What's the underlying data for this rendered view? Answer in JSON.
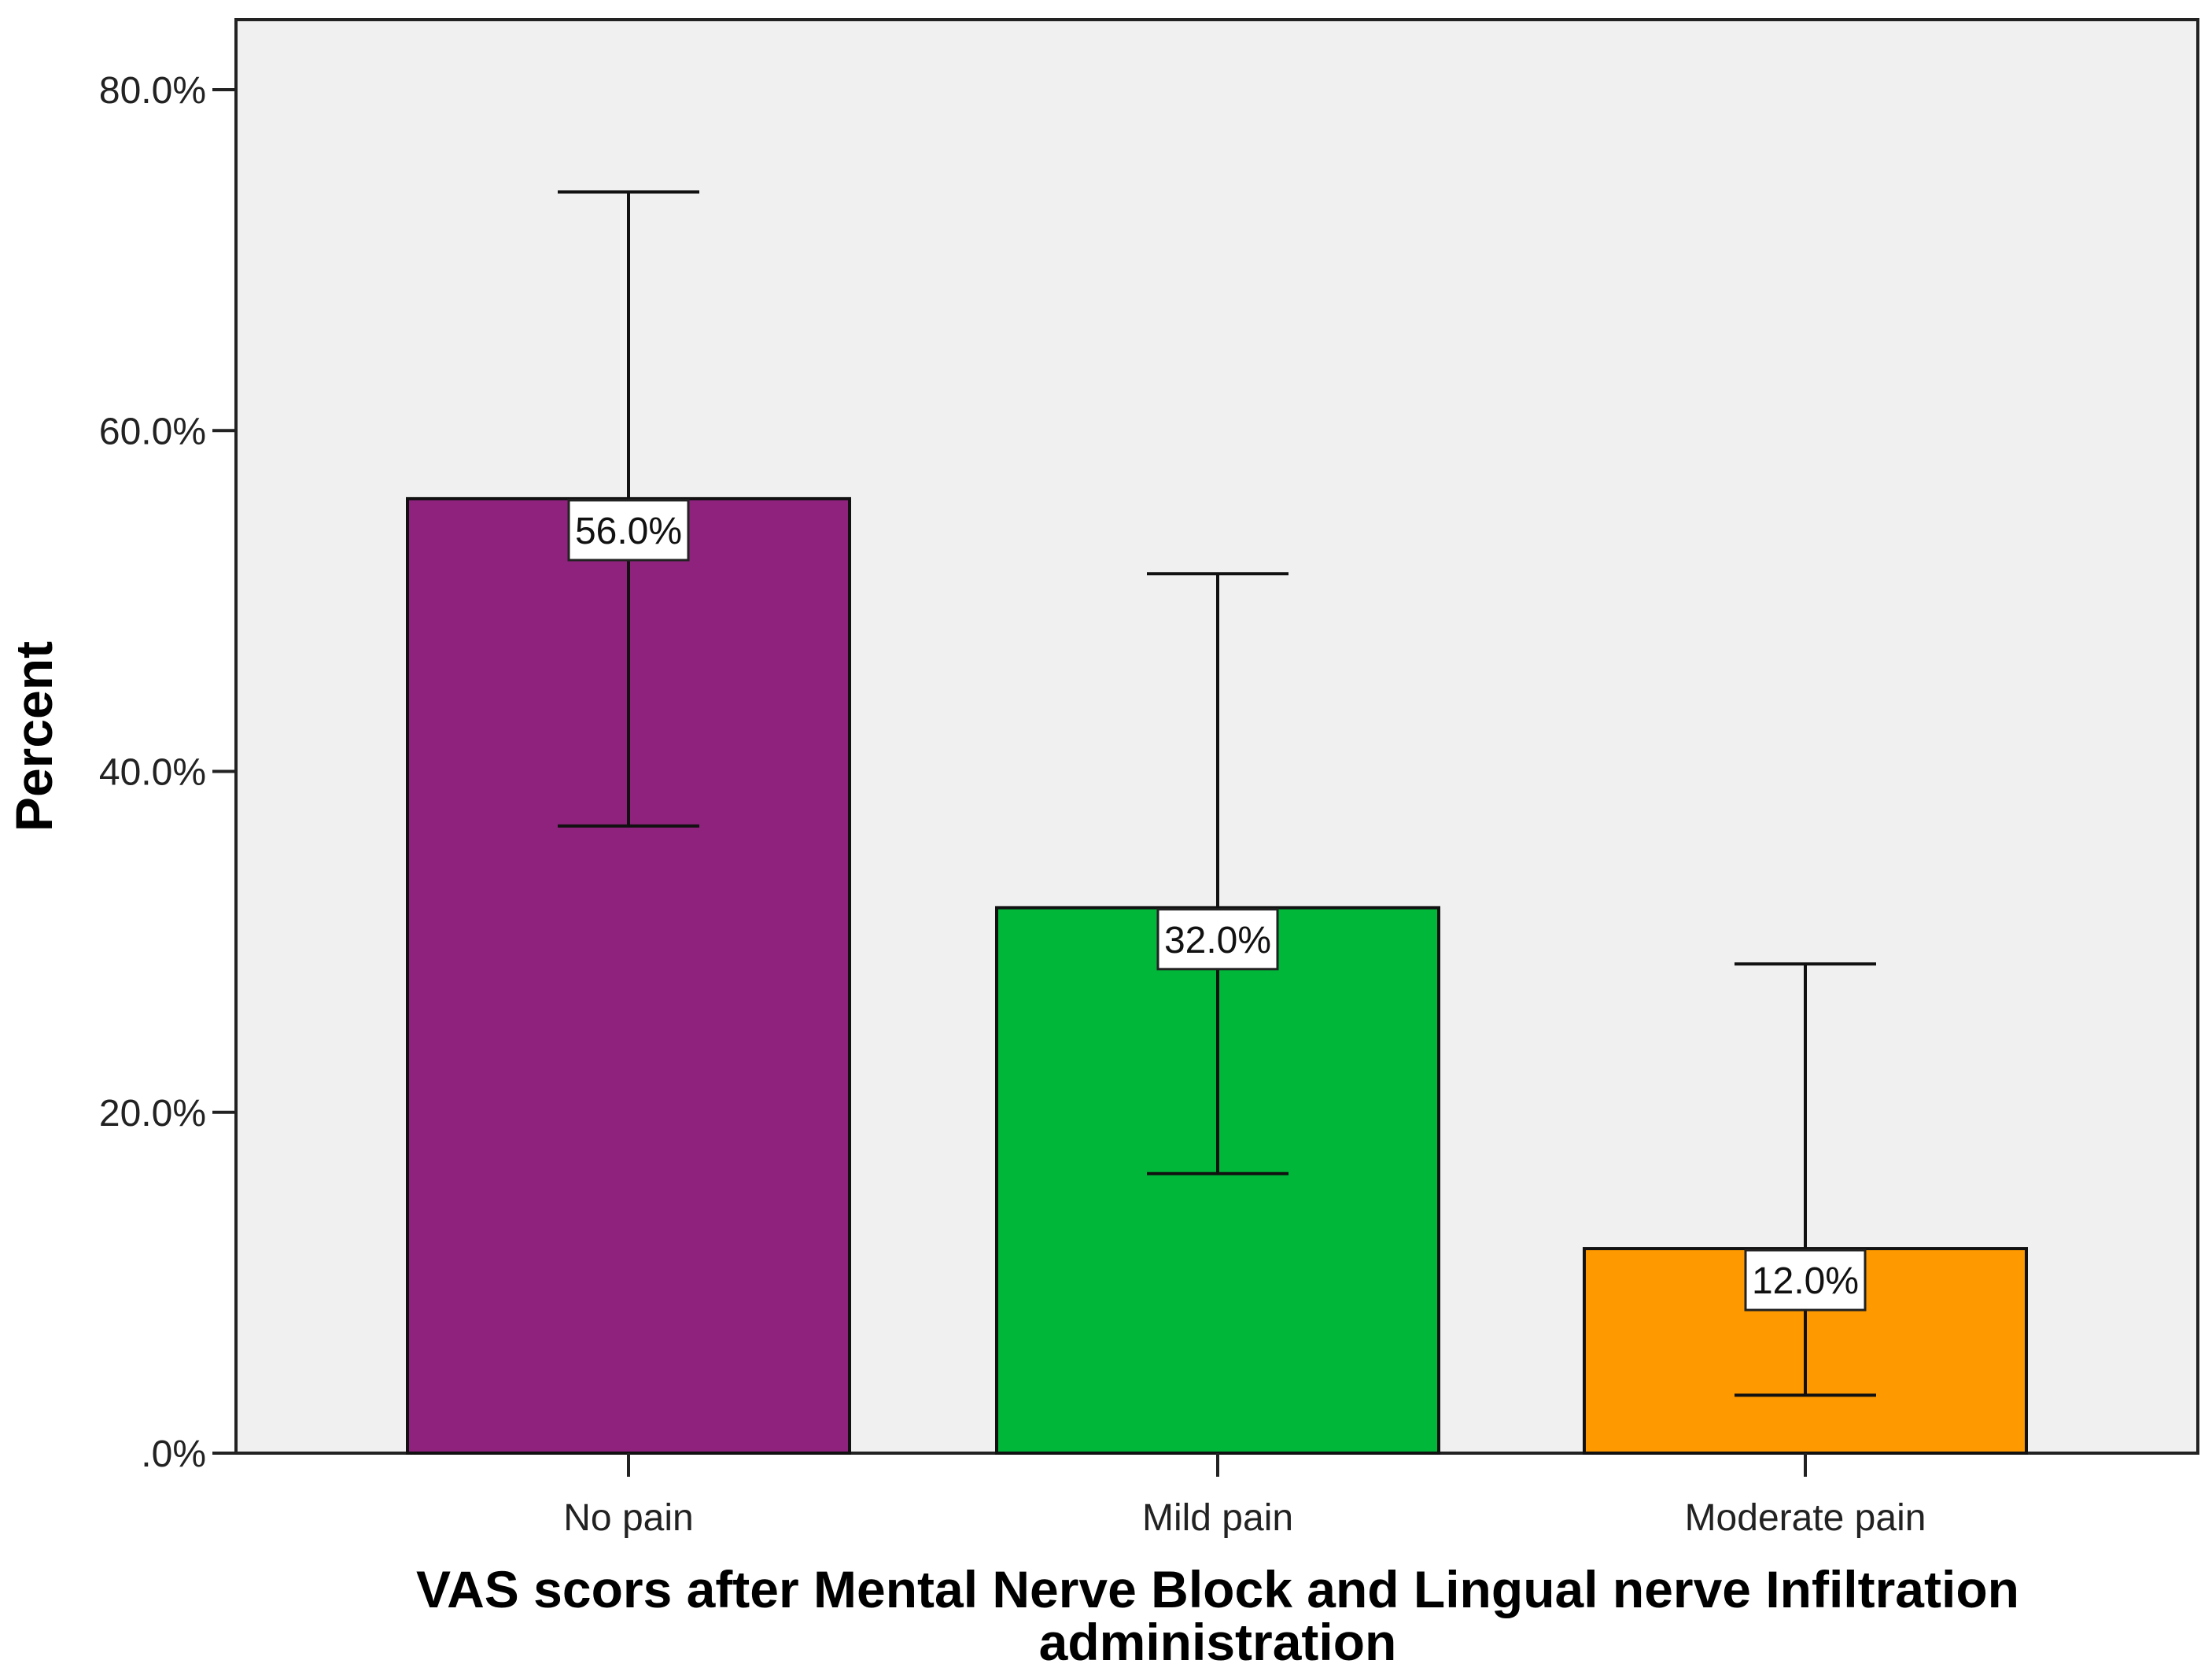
{
  "chart_data": {
    "type": "bar",
    "title": "",
    "xlabel_lines": [
      "VAS scors after Mental Nerve Block  and Lingual nerve Infiltration",
      "administration"
    ],
    "ylabel": "Percent",
    "ylim": [
      0,
      84
    ],
    "yticks": [
      0,
      20,
      40,
      60,
      80
    ],
    "ytick_labels": [
      ".0%",
      "20.0%",
      "40.0%",
      "60.0%",
      "80.0%"
    ],
    "categories": [
      "No pain",
      "Mild pain",
      "Moderate pain"
    ],
    "values": [
      56.0,
      32.0,
      12.0
    ],
    "data_labels": [
      "56.0%",
      "32.0%",
      "12.0%"
    ],
    "error_low": [
      36.8,
      16.4,
      3.4
    ],
    "error_high": [
      74.0,
      51.6,
      28.7
    ],
    "colors": [
      "#8E227D",
      "#00B73A",
      "#FF9900"
    ],
    "background": "#F0F0F0",
    "grid": false,
    "legend": "none"
  }
}
